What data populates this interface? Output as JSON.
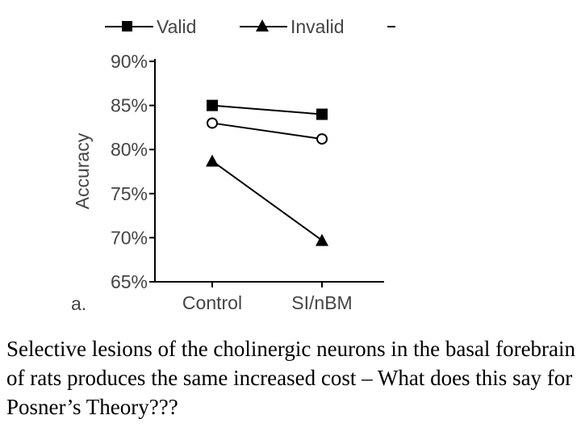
{
  "chart_data": {
    "type": "line",
    "ylabel": "Accuracy",
    "panel_label": "a.",
    "categories": [
      "Control",
      "SI/nBM"
    ],
    "y_ticks": [
      "90%",
      "85%",
      "80%",
      "75%",
      "70%",
      "65%"
    ],
    "ylim": [
      65,
      90
    ],
    "y_unit": "%",
    "grid": false,
    "legend_position": "top",
    "series": [
      {
        "name": "Valid",
        "marker": "square",
        "values": [
          85,
          84
        ],
        "color": "#000000"
      },
      {
        "name": "",
        "marker": "open-circle",
        "values": [
          83,
          81.2
        ],
        "color": "#000000"
      },
      {
        "name": "Invalid",
        "marker": "triangle",
        "values": [
          78.7,
          69.7
        ],
        "color": "#000000"
      }
    ]
  },
  "caption": "Selective lesions of the cholinergic neurons in the basal forebrain of rats produces the same increased cost – What does this say for Posner’s Theory???"
}
